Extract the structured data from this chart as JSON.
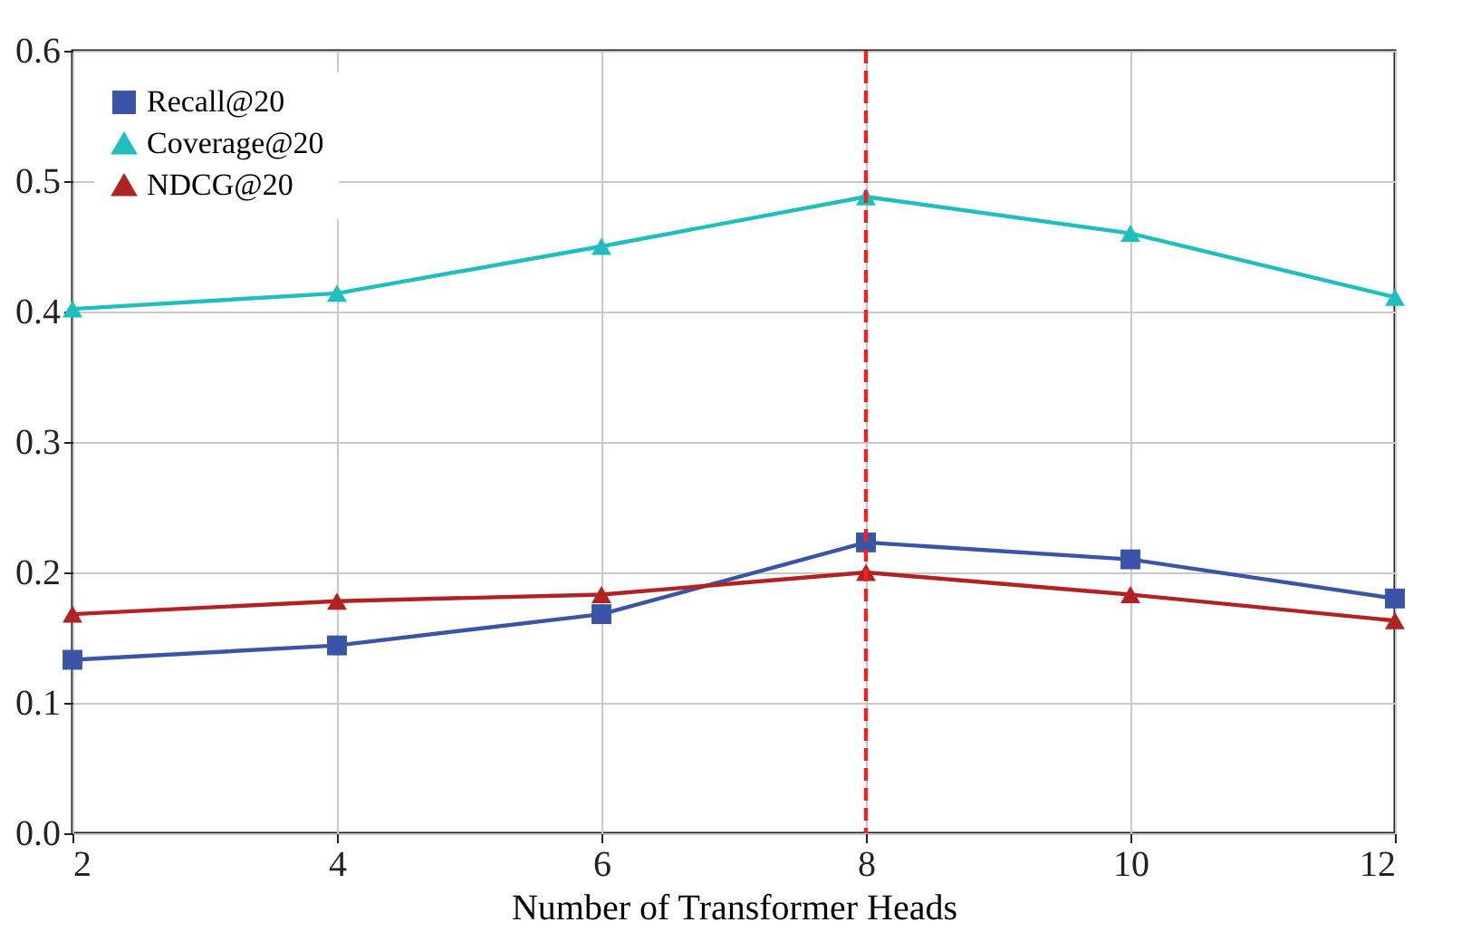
{
  "chart_data": {
    "type": "line",
    "xlabel": "Number of Transformer Heads",
    "x": [
      2,
      4,
      6,
      8,
      10,
      12
    ],
    "series": [
      {
        "name": "Recall@20",
        "color": "#3a55a8",
        "marker": "square",
        "values": [
          0.133,
          0.144,
          0.168,
          0.223,
          0.21,
          0.18
        ]
      },
      {
        "name": "Coverage@20",
        "color": "#20bfbf",
        "marker": "triangle",
        "values": [
          0.402,
          0.414,
          0.45,
          0.488,
          0.46,
          0.411
        ]
      },
      {
        "name": "NDCG@20",
        "color": "#b22222",
        "marker": "triangle",
        "values": [
          0.168,
          0.178,
          0.183,
          0.2,
          0.183,
          0.163
        ]
      }
    ],
    "xlim": [
      2,
      12
    ],
    "xticks": [
      2,
      4,
      6,
      8,
      10,
      12
    ],
    "ylim": [
      0,
      0.6
    ],
    "yticks": [
      {
        "value": 0,
        "label": "0.0"
      },
      0.1,
      0.2,
      0.3,
      0.4,
      0.5,
      0.6
    ],
    "grid": true,
    "legend": "top left",
    "line_style": "solid",
    "ref_lines": [
      {
        "axis": "x",
        "value": 8,
        "color": "#ee2222",
        "line_style": "dashed"
      }
    ]
  }
}
